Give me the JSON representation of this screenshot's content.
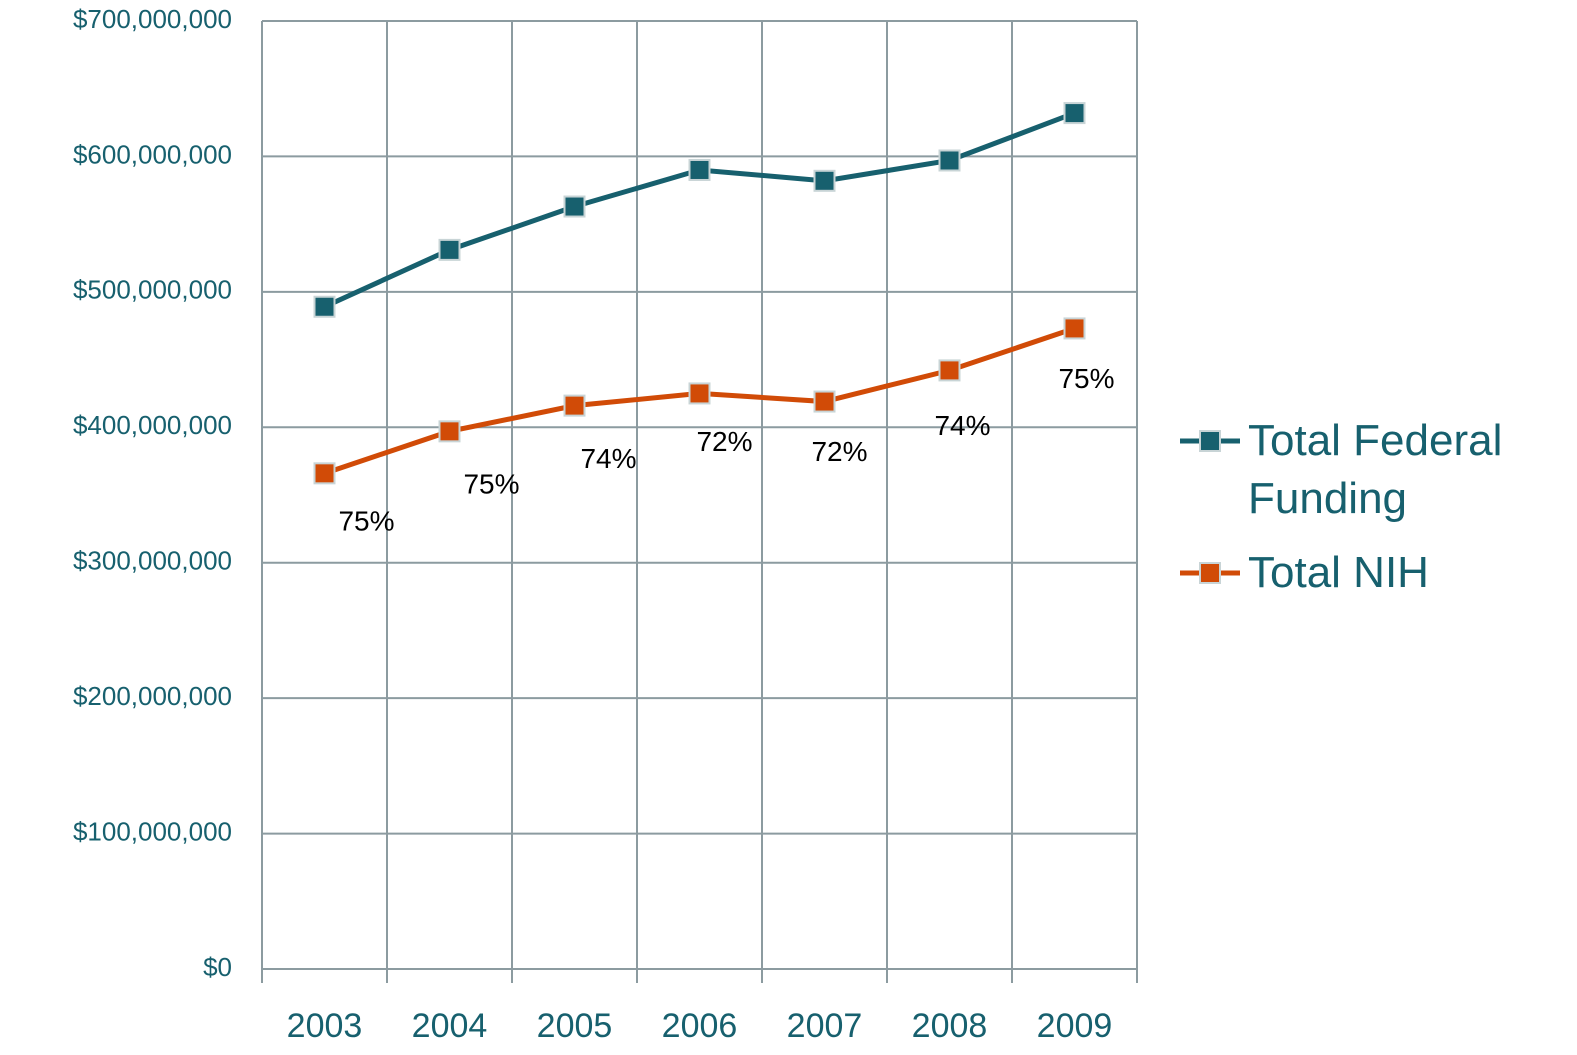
{
  "chart_data": {
    "type": "line",
    "categories": [
      "2003",
      "2004",
      "2005",
      "2006",
      "2007",
      "2008",
      "2009"
    ],
    "series": [
      {
        "name": "Total Federal Funding",
        "color": "#17606e",
        "values": [
          489000000,
          531000000,
          563000000,
          590000000,
          582000000,
          597000000,
          632000000
        ]
      },
      {
        "name": "Total NIH",
        "color": "#d14b07",
        "values": [
          366000000,
          397000000,
          416000000,
          425000000,
          419000000,
          442000000,
          473000000
        ],
        "share_labels": [
          "75%",
          "75%",
          "74%",
          "72%",
          "72%",
          "74%",
          "75%"
        ]
      }
    ],
    "ylim": [
      0,
      700000000
    ],
    "yticks": [
      {
        "value": 0,
        "label": "$0"
      },
      {
        "value": 100000000,
        "label": "$100,000,000"
      },
      {
        "value": 200000000,
        "label": "$200,000,000"
      },
      {
        "value": 300000000,
        "label": "$300,000,000"
      },
      {
        "value": 400000000,
        "label": "$400,000,000"
      },
      {
        "value": 500000000,
        "label": "$500,000,000"
      },
      {
        "value": 600000000,
        "label": "$600,000,000"
      },
      {
        "value": 700000000,
        "label": "$700,000,000"
      }
    ],
    "grid": true,
    "legend": "right"
  }
}
